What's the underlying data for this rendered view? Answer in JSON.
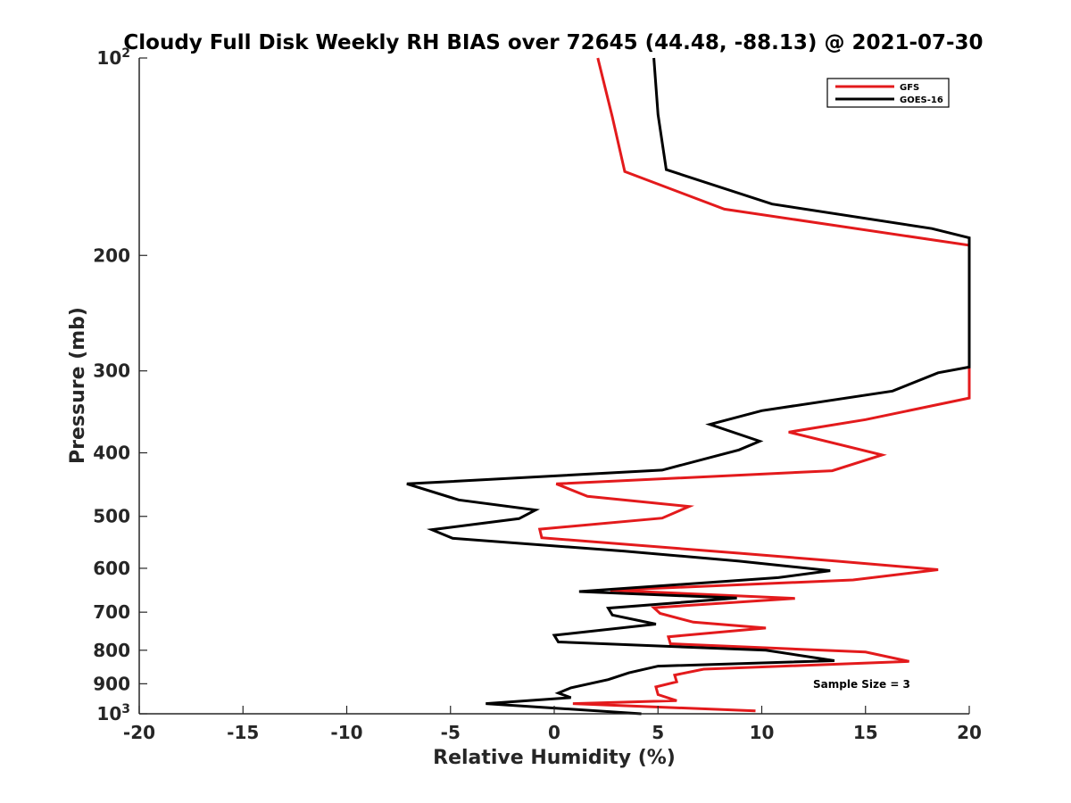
{
  "chart_data": {
    "type": "line",
    "title": "Cloudy Full Disk Weekly RH BIAS over 72645 (44.48, -88.13) @ 2021-07-30",
    "xlabel": "Relative Humidity (%)",
    "ylabel": "Pressure (mb)",
    "xlim": [
      -20,
      20
    ],
    "ylim": [
      100,
      1000
    ],
    "y_scale": "log",
    "y_reversed": true,
    "grid": false,
    "x_ticks": [
      -20,
      -15,
      -10,
      -5,
      0,
      5,
      10,
      15,
      20
    ],
    "x_tick_labels": [
      "-20",
      "-15",
      "-10",
      "-5",
      "0",
      "5",
      "10",
      "15",
      "20"
    ],
    "y_ticks": [
      {
        "value": 100,
        "base": "10",
        "exp": "2"
      },
      {
        "value": 200,
        "label": "200"
      },
      {
        "value": 300,
        "label": "300"
      },
      {
        "value": 400,
        "label": "400"
      },
      {
        "value": 500,
        "label": "500"
      },
      {
        "value": 600,
        "label": "600"
      },
      {
        "value": 700,
        "label": "700"
      },
      {
        "value": 800,
        "label": "800"
      },
      {
        "value": 900,
        "label": "900"
      },
      {
        "value": 1000,
        "base": "10",
        "exp": "3"
      }
    ],
    "legend_position": "top-right",
    "annotation": "Sample Size = 3",
    "series": [
      {
        "name": "GFS",
        "color": "#e31a1c",
        "points": [
          [
            2.1,
            100
          ],
          [
            2.8,
            123
          ],
          [
            3.4,
            149
          ],
          [
            8.2,
            170
          ],
          [
            20.0,
            193
          ],
          [
            20.0,
            330
          ],
          [
            15.0,
            356
          ],
          [
            11.3,
            372
          ],
          [
            15.8,
            403
          ],
          [
            13.4,
            426
          ],
          [
            0.1,
            446
          ],
          [
            1.6,
            466
          ],
          [
            6.5,
            483
          ],
          [
            5.2,
            503
          ],
          [
            -0.7,
            523
          ],
          [
            -0.6,
            539
          ],
          [
            8.9,
            569
          ],
          [
            13.6,
            585
          ],
          [
            18.5,
            603
          ],
          [
            14.4,
            625
          ],
          [
            2.7,
            648
          ],
          [
            11.6,
            667
          ],
          [
            4.8,
            689
          ],
          [
            5.1,
            703
          ],
          [
            6.7,
            725
          ],
          [
            10.2,
            740
          ],
          [
            5.5,
            763
          ],
          [
            5.6,
            782
          ],
          [
            15.0,
            805
          ],
          [
            17.1,
            832
          ],
          [
            7.2,
            855
          ],
          [
            5.8,
            873
          ],
          [
            5.9,
            894
          ],
          [
            4.9,
            910
          ],
          [
            5.0,
            935
          ],
          [
            5.9,
            955
          ],
          [
            0.9,
            965
          ],
          [
            9.7,
            990
          ]
        ]
      },
      {
        "name": "GOES-16",
        "color": "#000000",
        "points": [
          [
            4.8,
            100
          ],
          [
            5.0,
            122
          ],
          [
            5.4,
            148
          ],
          [
            10.5,
            167
          ],
          [
            18.2,
            182
          ],
          [
            20.0,
            188
          ],
          [
            20.0,
            296
          ],
          [
            18.5,
            302
          ],
          [
            16.3,
            322
          ],
          [
            10.0,
            345
          ],
          [
            7.5,
            362
          ],
          [
            9.9,
            384
          ],
          [
            8.9,
            396
          ],
          [
            5.2,
            425
          ],
          [
            -7.1,
            446
          ],
          [
            -4.6,
            472
          ],
          [
            -0.9,
            489
          ],
          [
            -1.7,
            504
          ],
          [
            -5.9,
            524
          ],
          [
            -4.9,
            540
          ],
          [
            3.4,
            565
          ],
          [
            8.9,
            585
          ],
          [
            13.3,
            605
          ],
          [
            10.8,
            620
          ],
          [
            1.2,
            651
          ],
          [
            8.8,
            666
          ],
          [
            2.6,
            690
          ],
          [
            2.8,
            707
          ],
          [
            4.9,
            730
          ],
          [
            0.0,
            759
          ],
          [
            0.2,
            777
          ],
          [
            10.2,
            800
          ],
          [
            13.5,
            830
          ],
          [
            5.0,
            846
          ],
          [
            3.6,
            866
          ],
          [
            2.6,
            887
          ],
          [
            0.8,
            913
          ],
          [
            0.2,
            930
          ],
          [
            0.8,
            945
          ],
          [
            -3.3,
            965
          ],
          [
            4.2,
            1000
          ]
        ]
      }
    ]
  }
}
